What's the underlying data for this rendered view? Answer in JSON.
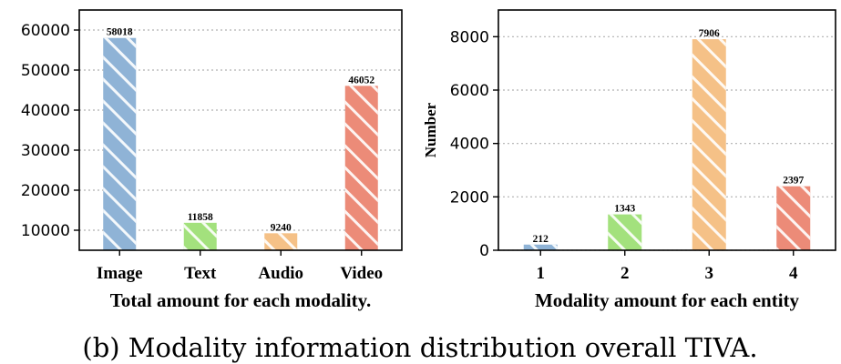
{
  "caption": "(b) Modality information distribution overall TIVA.",
  "colors": {
    "blue": "#8fb3d6",
    "green": "#a3e17d",
    "orange": "#f5c187",
    "red": "#ec8b78"
  },
  "chart_data": [
    {
      "type": "bar",
      "title": "",
      "xlabel": "Total amount for each modality.",
      "ylabel": "",
      "categories": [
        "Image",
        "Text",
        "Audio",
        "Video"
      ],
      "values": [
        58018,
        11858,
        9240,
        46052
      ],
      "data_labels": [
        "58018",
        "11858",
        "9240",
        "46052"
      ],
      "colors": [
        "#8fb3d6",
        "#a3e17d",
        "#f5c187",
        "#ec8b78"
      ],
      "hatch": "diagonal",
      "ylim": [
        5000,
        65000
      ],
      "yticks": [
        10000,
        20000,
        30000,
        40000,
        50000,
        60000
      ],
      "ytick_labels": [
        "10000",
        "20000",
        "30000",
        "40000",
        "50000",
        "60000"
      ],
      "grid": "horizontal dotted",
      "legend": "none"
    },
    {
      "type": "bar",
      "title": "",
      "xlabel": "Modality amount for each entity",
      "ylabel": "Number",
      "categories": [
        "1",
        "2",
        "3",
        "4"
      ],
      "values": [
        212,
        1343,
        7906,
        2397
      ],
      "data_labels": [
        "212",
        "1343",
        "7906",
        "2397"
      ],
      "colors": [
        "#8fb3d6",
        "#a3e17d",
        "#f5c187",
        "#ec8b78"
      ],
      "hatch": "diagonal",
      "ylim": [
        0,
        9000
      ],
      "yticks": [
        0,
        2000,
        4000,
        6000,
        8000
      ],
      "ytick_labels": [
        "0",
        "2000",
        "4000",
        "6000",
        "8000"
      ],
      "grid": "horizontal dotted",
      "legend": "none"
    }
  ]
}
